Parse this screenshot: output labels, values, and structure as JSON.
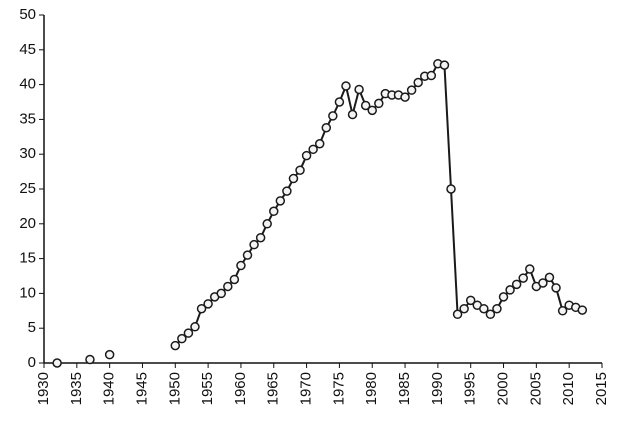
{
  "chart_data": {
    "type": "line",
    "x": [
      1932,
      1933,
      1934,
      1935,
      1936,
      1937,
      1938,
      1939,
      1940,
      1941,
      1942,
      1943,
      1944,
      1945,
      1946,
      1947,
      1948,
      1949,
      1950,
      1951,
      1952,
      1953,
      1954,
      1955,
      1956,
      1957,
      1958,
      1959,
      1960,
      1961,
      1962,
      1963,
      1964,
      1965,
      1966,
      1967,
      1968,
      1969,
      1970,
      1971,
      1972,
      1973,
      1974,
      1975,
      1976,
      1977,
      1978,
      1979,
      1980,
      1981,
      1982,
      1983,
      1984,
      1985,
      1986,
      1987,
      1988,
      1989,
      1990,
      1991,
      1992,
      1993,
      1994,
      1995,
      1996,
      1997,
      1998,
      1999,
      2000,
      2001,
      2002,
      2003,
      2004,
      2005,
      2006,
      2007,
      2008,
      2009,
      2010,
      2011,
      2012
    ],
    "values": [
      0,
      null,
      null,
      null,
      null,
      0.5,
      null,
      null,
      1.2,
      null,
      null,
      null,
      null,
      null,
      null,
      null,
      null,
      null,
      2.5,
      3.5,
      4.3,
      5.2,
      7.8,
      8.5,
      9.5,
      10,
      11,
      12,
      14,
      15.5,
      17,
      18,
      20,
      21.8,
      23.3,
      24.7,
      26.5,
      27.7,
      29.8,
      30.7,
      31.5,
      33.8,
      35.5,
      37.5,
      39.8,
      35.7,
      39.3,
      37,
      36.3,
      37.3,
      38.7,
      38.5,
      38.5,
      38.2,
      39.2,
      40.3,
      41.2,
      41.3,
      43,
      42.8,
      25,
      7,
      7.8,
      9,
      8.3,
      7.8,
      7,
      7.8,
      9.5,
      10.5,
      11.3,
      12.2,
      13.5,
      11,
      11.5,
      12.3,
      10.8,
      7.5,
      8.3,
      8,
      7.6
    ],
    "color": "#1a1a1a",
    "xlim": [
      1930,
      2015
    ],
    "xticks": [
      1930,
      1935,
      1940,
      1945,
      1950,
      1955,
      1960,
      1965,
      1970,
      1975,
      1980,
      1985,
      1990,
      1995,
      2000,
      2005,
      2010,
      2015
    ],
    "ylim": [
      0,
      50
    ],
    "yticks": [
      0,
      5,
      10,
      15,
      20,
      25,
      30,
      35,
      40,
      45,
      50
    ],
    "grid": false
  }
}
